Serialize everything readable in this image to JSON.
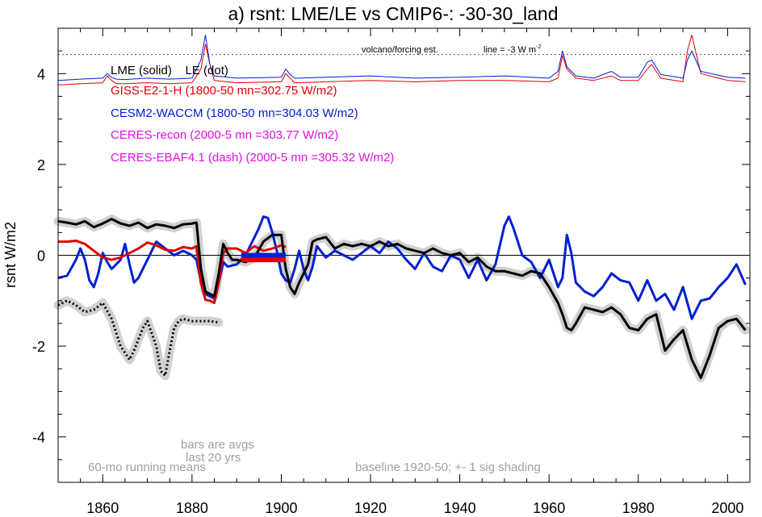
{
  "chart_data": {
    "type": "line",
    "title": "a) rsnt: LME/LE vs CMIP6-: -30-30_land",
    "ylabel": "rsnt W/m2",
    "xlim": [
      1850,
      2005
    ],
    "ylim": [
      -5,
      5
    ],
    "xticks": [
      1860,
      1880,
      1900,
      1920,
      1940,
      1960,
      1980,
      2000
    ],
    "yticks": [
      -4,
      -2,
      0,
      2,
      4
    ],
    "legend": {
      "lme_le": "LME (solid)    LE (dot)",
      "giss": "GISS-E2-1-H (1800-50 mn=302.75 W/m2)",
      "cesm": "CESM2-WACCM (1800-50 mn=304.03 W/m2)",
      "ceres_recon": "CERES-recon (2000-5 mn =303.77 W/m2)",
      "ceres_ebaf": "CERES-EBAF4.1 (dash) (2000-5 mn =305.32 W/m2)"
    },
    "annotations": {
      "volcano": "volcano/forcing est.",
      "line": "line = -3 W m",
      "line_sup": "-2",
      "bars": "bars are avgs",
      "last20": "last 20 yrs",
      "running": "60-mo running means",
      "baseline": "baseline 1920-50; +- 1 sig shading"
    },
    "colors": {
      "black": "#000000",
      "giss": "#e00000",
      "cesm": "#0020d0",
      "ceres": "#e010e0",
      "shade": "#d0d0d0",
      "note": "#a0a0a0"
    },
    "series": [
      {
        "name": "GISS-E2-1-H",
        "x": [
          1850,
          1852,
          1854,
          1856,
          1858,
          1860,
          1862,
          1864,
          1866,
          1868,
          1870,
          1872,
          1874,
          1876,
          1878,
          1880,
          1881,
          1882,
          1883,
          1884,
          1885,
          1886,
          1887,
          1888,
          1890,
          1892,
          1894,
          1896,
          1898,
          1900,
          1901
        ],
        "y": [
          0.3,
          0.3,
          0.32,
          0.25,
          0.1,
          -0.05,
          -0.1,
          -0.05,
          0.05,
          0.15,
          0.28,
          0.22,
          0.12,
          0.1,
          0.18,
          0.15,
          0.2,
          -0.6,
          -0.98,
          -1.0,
          -1.05,
          -0.6,
          0.05,
          0.15,
          0.15,
          0.05,
          0.2,
          0.1,
          0.15,
          0.22,
          0.18
        ]
      },
      {
        "name": "CESM2-WACCM",
        "x": [
          1850,
          1852,
          1854,
          1855,
          1856,
          1857,
          1858,
          1859,
          1860,
          1861,
          1862,
          1863,
          1864,
          1865,
          1866,
          1867,
          1868,
          1870,
          1872,
          1874,
          1876,
          1878,
          1880,
          1881,
          1882,
          1883,
          1884,
          1885,
          1886,
          1887,
          1888,
          1890,
          1892,
          1894,
          1895,
          1896,
          1897,
          1898,
          1899,
          1900,
          1901,
          1902,
          1903,
          1904,
          1905,
          1906,
          1907,
          1908,
          1910,
          1912,
          1914,
          1916,
          1918,
          1920,
          1922,
          1924,
          1926,
          1928,
          1930,
          1932,
          1934,
          1936,
          1938,
          1940,
          1942,
          1944,
          1946,
          1948,
          1950,
          1951,
          1952,
          1954,
          1956,
          1958,
          1960,
          1962,
          1963,
          1964,
          1965,
          1966,
          1968,
          1970,
          1972,
          1974,
          1976,
          1978,
          1980,
          1982,
          1984,
          1986,
          1988,
          1990,
          1992,
          1994,
          1996,
          1998,
          2000,
          2002,
          2004
        ],
        "y": [
          -0.5,
          -0.45,
          -0.1,
          0.15,
          -0.1,
          -0.55,
          -0.7,
          -0.4,
          0.05,
          -0.15,
          -0.3,
          -0.2,
          -0.1,
          0.25,
          -0.2,
          -0.6,
          -0.5,
          -0.1,
          0.3,
          0.15,
          0.0,
          0.1,
          0.0,
          -0.1,
          -0.55,
          -0.85,
          -0.9,
          -0.95,
          -0.6,
          -0.15,
          -0.25,
          -0.2,
          0.0,
          0.4,
          0.6,
          0.85,
          0.82,
          0.5,
          0.1,
          -0.4,
          -0.55,
          -0.6,
          -0.3,
          0.1,
          -0.3,
          -0.55,
          -0.25,
          0.2,
          -0.05,
          0.1,
          0.0,
          -0.1,
          0.05,
          0.2,
          0.05,
          0.3,
          0.15,
          -0.1,
          -0.3,
          0.05,
          -0.25,
          -0.35,
          0.0,
          -0.1,
          -0.5,
          -0.1,
          -0.55,
          -0.2,
          0.65,
          0.85,
          0.6,
          0.0,
          -0.15,
          -0.5,
          -0.1,
          -0.7,
          -0.5,
          0.45,
          0.05,
          -0.6,
          -0.8,
          -0.9,
          -0.7,
          -0.4,
          -0.55,
          -0.6,
          -1.0,
          -0.55,
          -1.0,
          -0.85,
          -1.2,
          -0.7,
          -1.4,
          -1.0,
          -0.95,
          -0.7,
          -0.5,
          -0.2,
          -0.65
        ]
      },
      {
        "name": "LME",
        "x": [
          1850,
          1852,
          1854,
          1856,
          1858,
          1860,
          1862,
          1864,
          1866,
          1868,
          1870,
          1872,
          1874,
          1876,
          1878,
          1880,
          1881,
          1882,
          1883,
          1884,
          1885,
          1886,
          1887,
          1888,
          1889,
          1890,
          1892,
          1894,
          1896,
          1898,
          1900,
          1901,
          1902,
          1903,
          1904,
          1906,
          1907,
          1908,
          1910,
          1912,
          1914,
          1916,
          1918,
          1920,
          1922,
          1924,
          1926,
          1928,
          1930,
          1932,
          1934,
          1936,
          1938,
          1940,
          1942,
          1944,
          1946,
          1948,
          1950,
          1952,
          1954,
          1956,
          1958,
          1960,
          1962,
          1963,
          1964,
          1965,
          1966,
          1968,
          1970,
          1972,
          1974,
          1976,
          1978,
          1980,
          1982,
          1984,
          1986,
          1988,
          1990,
          1992,
          1994,
          1996,
          1998,
          2000,
          2002,
          2004
        ],
        "y": [
          0.75,
          0.72,
          0.68,
          0.75,
          0.62,
          0.7,
          0.8,
          0.7,
          0.65,
          0.72,
          0.6,
          0.68,
          0.65,
          0.6,
          0.68,
          0.7,
          0.72,
          -0.3,
          -0.8,
          -0.85,
          -0.9,
          -0.4,
          0.25,
          0.05,
          -0.1,
          -0.1,
          -0.15,
          -0.05,
          0.3,
          0.45,
          0.45,
          -0.3,
          -0.7,
          -0.85,
          -0.6,
          -0.2,
          0.3,
          0.35,
          0.4,
          0.15,
          0.25,
          0.2,
          0.25,
          0.2,
          0.3,
          0.2,
          0.25,
          0.15,
          0.1,
          0.05,
          0.15,
          0.05,
          0.0,
          0.05,
          -0.15,
          -0.05,
          -0.25,
          -0.35,
          -0.35,
          -0.4,
          -0.45,
          -0.35,
          -0.4,
          -0.7,
          -1.05,
          -1.3,
          -1.6,
          -1.65,
          -1.5,
          -1.15,
          -1.2,
          -1.25,
          -1.15,
          -1.3,
          -1.6,
          -1.65,
          -1.4,
          -1.3,
          -2.1,
          -1.85,
          -1.65,
          -2.3,
          -2.7,
          -2.2,
          -1.6,
          -1.45,
          -1.4,
          -1.65
        ]
      },
      {
        "name": "LE",
        "x": [
          1850,
          1852,
          1854,
          1856,
          1858,
          1860,
          1862,
          1864,
          1866,
          1867,
          1868,
          1869,
          1870,
          1872,
          1873,
          1874,
          1875,
          1876,
          1877,
          1878,
          1880,
          1882,
          1884,
          1886
        ],
        "y": [
          -1.1,
          -1.0,
          -1.1,
          -1.25,
          -1.2,
          -1.05,
          -1.4,
          -2.0,
          -2.3,
          -2.1,
          -1.85,
          -1.6,
          -1.45,
          -2.0,
          -2.55,
          -2.65,
          -2.1,
          -1.6,
          -1.45,
          -1.4,
          -1.45,
          -1.45,
          -1.45,
          -1.48
        ]
      },
      {
        "name": "volcano/forcing est. GISS",
        "x": [
          1850,
          1855,
          1860,
          1861,
          1862,
          1863,
          1865,
          1870,
          1875,
          1880,
          1882,
          1883,
          1884,
          1885,
          1890,
          1900,
          1901,
          1902,
          1903,
          1904,
          1910,
          1920,
          1930,
          1940,
          1950,
          1960,
          1962,
          1963,
          1964,
          1966,
          1970,
          1974,
          1976,
          1980,
          1982,
          1983,
          1985,
          1990,
          1991,
          1992,
          1994,
          2000,
          2004
        ],
        "y": [
          3.75,
          3.78,
          3.8,
          3.95,
          3.85,
          3.78,
          3.78,
          3.8,
          3.78,
          3.8,
          4.1,
          4.65,
          4.2,
          3.85,
          3.8,
          3.82,
          4.0,
          3.9,
          3.8,
          3.8,
          3.82,
          3.85,
          3.82,
          3.85,
          3.85,
          3.82,
          3.9,
          4.4,
          4.1,
          3.9,
          3.85,
          3.95,
          3.85,
          3.85,
          4.1,
          4.2,
          3.9,
          3.82,
          4.5,
          4.85,
          4.0,
          3.85,
          3.82
        ]
      },
      {
        "name": "volcano/forcing est. CESM",
        "x": [
          1850,
          1855,
          1860,
          1861,
          1862,
          1863,
          1865,
          1870,
          1875,
          1880,
          1882,
          1883,
          1884,
          1885,
          1890,
          1900,
          1901,
          1902,
          1903,
          1904,
          1910,
          1920,
          1930,
          1940,
          1950,
          1960,
          1962,
          1963,
          1964,
          1966,
          1970,
          1974,
          1976,
          1980,
          1982,
          1983,
          1985,
          1990,
          1991,
          1992,
          1994,
          2000,
          2004
        ],
        "y": [
          3.85,
          3.88,
          3.9,
          4.0,
          3.92,
          3.88,
          3.87,
          3.9,
          3.88,
          3.9,
          4.3,
          4.85,
          4.2,
          3.95,
          3.9,
          3.92,
          4.1,
          3.98,
          3.9,
          3.9,
          3.92,
          3.95,
          3.9,
          3.92,
          3.95,
          3.9,
          4.05,
          4.5,
          4.15,
          3.95,
          3.9,
          4.05,
          3.92,
          3.92,
          4.25,
          4.3,
          3.98,
          3.9,
          4.3,
          4.5,
          4.05,
          3.92,
          3.9
        ]
      }
    ],
    "reference_lines": [
      {
        "y": 0,
        "style": "solid",
        "color": "#000000"
      },
      {
        "y": 4.42,
        "style": "dotted",
        "color": "#555555"
      }
    ],
    "bars": [
      {
        "series": "CESM2-WACCM",
        "x": [
          1891,
          1901
        ],
        "y": 0.0
      },
      {
        "series": "GISS-E2-1-H",
        "x": [
          1891,
          1901
        ],
        "y": -0.1
      }
    ]
  }
}
